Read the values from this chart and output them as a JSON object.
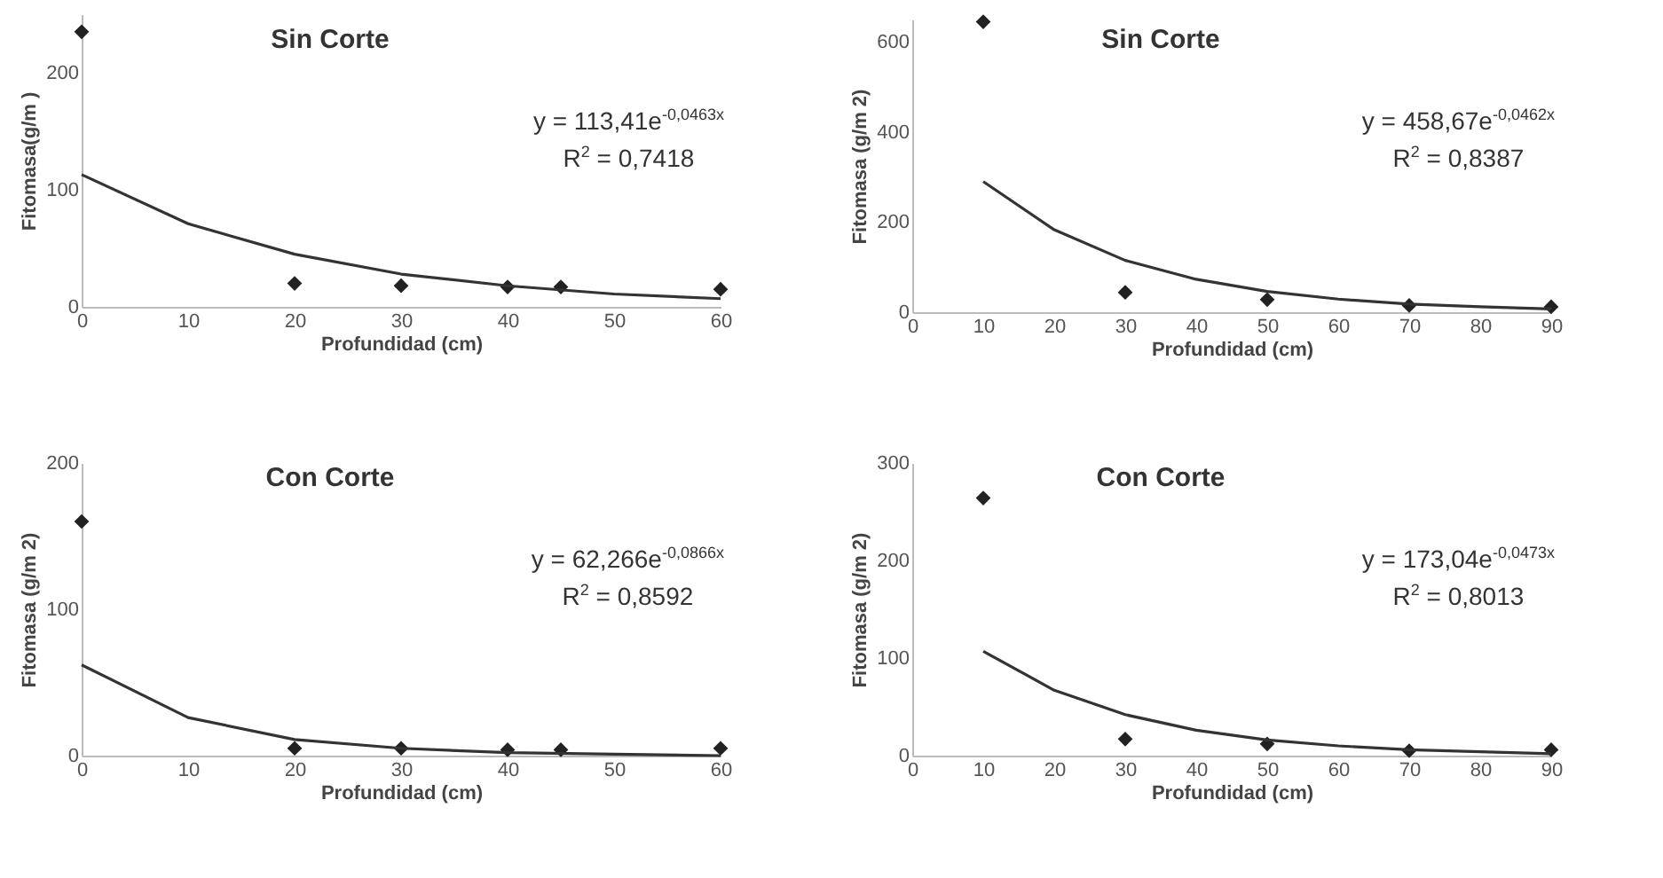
{
  "chart_data": [
    {
      "type": "scatter",
      "title": "Sin Corte",
      "xlabel": "Profundidad (cm)",
      "ylabel": "Fitomasa(g/m )",
      "xlim": [
        0,
        60
      ],
      "xticks": [
        0,
        10,
        20,
        30,
        40,
        50,
        60
      ],
      "ylim": [
        0,
        250
      ],
      "yticks": [
        0,
        100,
        200
      ],
      "annotations": [
        "y = 113,41e$^{-0,0463x}$",
        "R$^{2}$ = 0,7418"
      ],
      "series": [
        {
          "color": "#222222",
          "marker": "diamond",
          "x": [
            0,
            20,
            30,
            40,
            45,
            60
          ],
          "values": [
            235,
            20,
            18,
            17,
            17,
            15
          ]
        },
        {
          "type": "line",
          "color": "#333333",
          "marker": "none",
          "x": [
            0,
            10,
            20,
            30,
            40,
            50,
            60
          ],
          "values": [
            113,
            71,
            45,
            28,
            18,
            11,
            7
          ]
        }
      ]
    },
    {
      "type": "scatter",
      "title": "Sin Corte",
      "xlabel": "Profundidad (cm)",
      "ylabel": "Fitomasa (g/m 2)",
      "xlim": [
        0,
        90
      ],
      "xticks": [
        0,
        10,
        20,
        30,
        40,
        50,
        60,
        70,
        80,
        90
      ],
      "ylim": [
        0,
        650
      ],
      "yticks": [
        0,
        200,
        400,
        600
      ],
      "annotations": [
        "y = 458,67e$^{-0,0462x}$",
        "R$^{2}$ = 0,8387"
      ],
      "series": [
        {
          "color": "#222222",
          "marker": "diamond",
          "x": [
            10,
            30,
            50,
            70,
            90
          ],
          "values": [
            645,
            44,
            28,
            15,
            12
          ]
        },
        {
          "type": "line",
          "color": "#333333",
          "marker": "none",
          "x": [
            10,
            20,
            30,
            40,
            50,
            60,
            70,
            80,
            90
          ],
          "values": [
            290,
            183,
            115,
            73,
            46,
            29,
            18,
            12,
            7
          ]
        }
      ]
    },
    {
      "type": "scatter",
      "title": "Con Corte",
      "xlabel": "Profundidad (cm)",
      "ylabel": "Fitomasa (g/m 2)",
      "xlim": [
        0,
        60
      ],
      "xticks": [
        0,
        10,
        20,
        30,
        40,
        50,
        60
      ],
      "ylim": [
        0,
        200
      ],
      "yticks": [
        0,
        100,
        200
      ],
      "annotations": [
        "y = 62,266e$^{-0,0866x}$",
        "R$^{2}$ = 0,8592"
      ],
      "series": [
        {
          "color": "#222222",
          "marker": "diamond",
          "x": [
            0,
            20,
            30,
            40,
            45,
            60
          ],
          "values": [
            160,
            5,
            5,
            4,
            4,
            5
          ]
        },
        {
          "type": "line",
          "color": "#333333",
          "marker": "none",
          "x": [
            0,
            10,
            20,
            30,
            40,
            50,
            60
          ],
          "values": [
            62,
            26,
            11,
            5,
            2,
            1,
            0
          ]
        }
      ]
    },
    {
      "type": "scatter",
      "title": "Con Corte",
      "xlabel": "Profundidad (cm)",
      "ylabel": "Fitomasa (g/m 2)",
      "xlim": [
        0,
        90
      ],
      "xticks": [
        0,
        10,
        20,
        30,
        40,
        50,
        60,
        70,
        80,
        90
      ],
      "ylim": [
        0,
        300
      ],
      "yticks": [
        0,
        100,
        200,
        300
      ],
      "annotations": [
        "y = 173,04e$^{-0,0473x}$",
        "R$^{2}$ = 0,8013"
      ],
      "series": [
        {
          "color": "#222222",
          "marker": "diamond",
          "x": [
            10,
            30,
            50,
            70,
            90
          ],
          "values": [
            264,
            17,
            12,
            5,
            6
          ]
        },
        {
          "type": "line",
          "color": "#333333",
          "marker": "none",
          "x": [
            10,
            20,
            30,
            40,
            50,
            60,
            70,
            80,
            90
          ],
          "values": [
            107,
            67,
            42,
            26,
            16,
            10,
            6,
            4,
            2
          ]
        }
      ]
    }
  ]
}
